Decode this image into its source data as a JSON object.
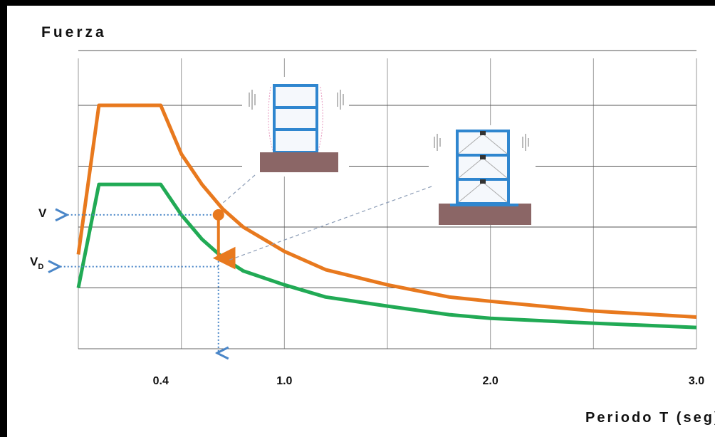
{
  "chart_data": {
    "type": "line",
    "ylabel": "Fuerza",
    "xlabel": "Periodo T (seg)",
    "xlim": [
      0,
      3.0
    ],
    "ylim": [
      0,
      4
    ],
    "x_ticks": [
      {
        "value": 0.4,
        "label": "0.4"
      },
      {
        "value": 1.0,
        "label": "1.0"
      },
      {
        "value": 2.0,
        "label": "2.0"
      },
      {
        "value": 3.0,
        "label": "3.0"
      }
    ],
    "y_markers": {
      "V": {
        "label": "V",
        "value": 2.2
      },
      "VD": {
        "label": "V",
        "sub": "D",
        "value": 1.35
      }
    },
    "marker_period": 0.68,
    "grid": true,
    "series": [
      {
        "color": "#E8791E",
        "points": [
          [
            0.0,
            1.55
          ],
          [
            0.1,
            4.0
          ],
          [
            0.4,
            4.0
          ],
          [
            0.5,
            3.2
          ],
          [
            0.6,
            2.7
          ],
          [
            0.7,
            2.3
          ],
          [
            0.8,
            2.0
          ],
          [
            1.0,
            1.6
          ],
          [
            1.2,
            1.3
          ],
          [
            1.5,
            1.05
          ],
          [
            1.8,
            0.85
          ],
          [
            2.0,
            0.78
          ],
          [
            2.5,
            0.62
          ],
          [
            3.0,
            0.52
          ]
        ]
      },
      {
        "color": "#21AA55",
        "points": [
          [
            0.0,
            1.0
          ],
          [
            0.1,
            2.7
          ],
          [
            0.4,
            2.7
          ],
          [
            0.5,
            2.2
          ],
          [
            0.6,
            1.8
          ],
          [
            0.7,
            1.5
          ],
          [
            0.8,
            1.28
          ],
          [
            1.0,
            1.05
          ],
          [
            1.2,
            0.85
          ],
          [
            1.5,
            0.7
          ],
          [
            1.8,
            0.56
          ],
          [
            2.0,
            0.5
          ],
          [
            2.5,
            0.42
          ],
          [
            3.0,
            0.35
          ]
        ]
      }
    ]
  },
  "colors": {
    "orange": "#E8791E",
    "green": "#21AA55",
    "blue_dotted": "#4A86C8",
    "grid": "#9a9a9a",
    "building_blue": "#2F86CF",
    "foundation": "#8B6666"
  },
  "illustrations": [
    {
      "name": "fixed-base-building-icon"
    },
    {
      "name": "isolated-base-building-icon"
    }
  ]
}
